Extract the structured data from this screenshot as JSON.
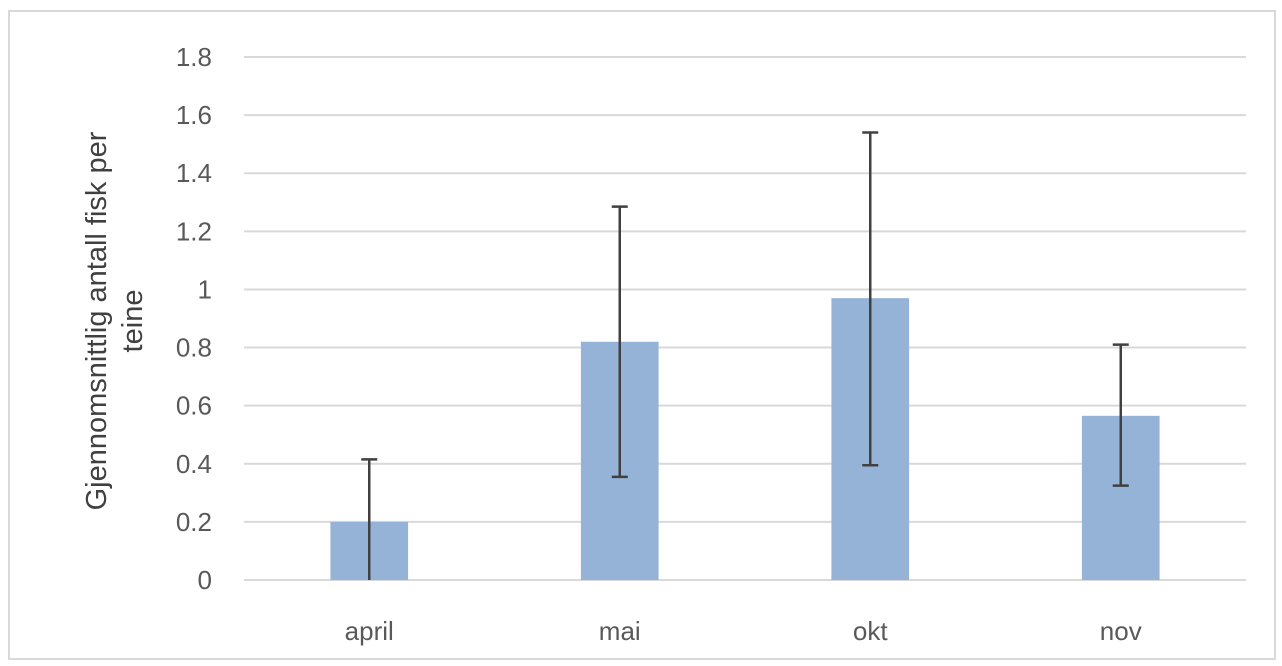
{
  "chart_data": {
    "type": "bar",
    "categories": [
      "april",
      "mai",
      "okt",
      "nov"
    ],
    "values": [
      0.2,
      0.82,
      0.97,
      0.565
    ],
    "error_low": [
      0.0,
      0.355,
      0.395,
      0.325
    ],
    "error_high": [
      0.415,
      1.285,
      1.54,
      0.81
    ],
    "ylabel_lines": [
      "Gjennomsnittlig antall fisk per",
      "teine"
    ],
    "ylim": [
      0,
      1.8
    ],
    "yticks": [
      "0",
      "0.2",
      "0.4",
      "0.6",
      "0.8",
      "1",
      "1.2",
      "1.4",
      "1.6",
      "1.8"
    ],
    "grid": true,
    "bar_color": "#95b3d7",
    "errorbar_color": "#404040",
    "grid_color": "#d9d9d9"
  }
}
